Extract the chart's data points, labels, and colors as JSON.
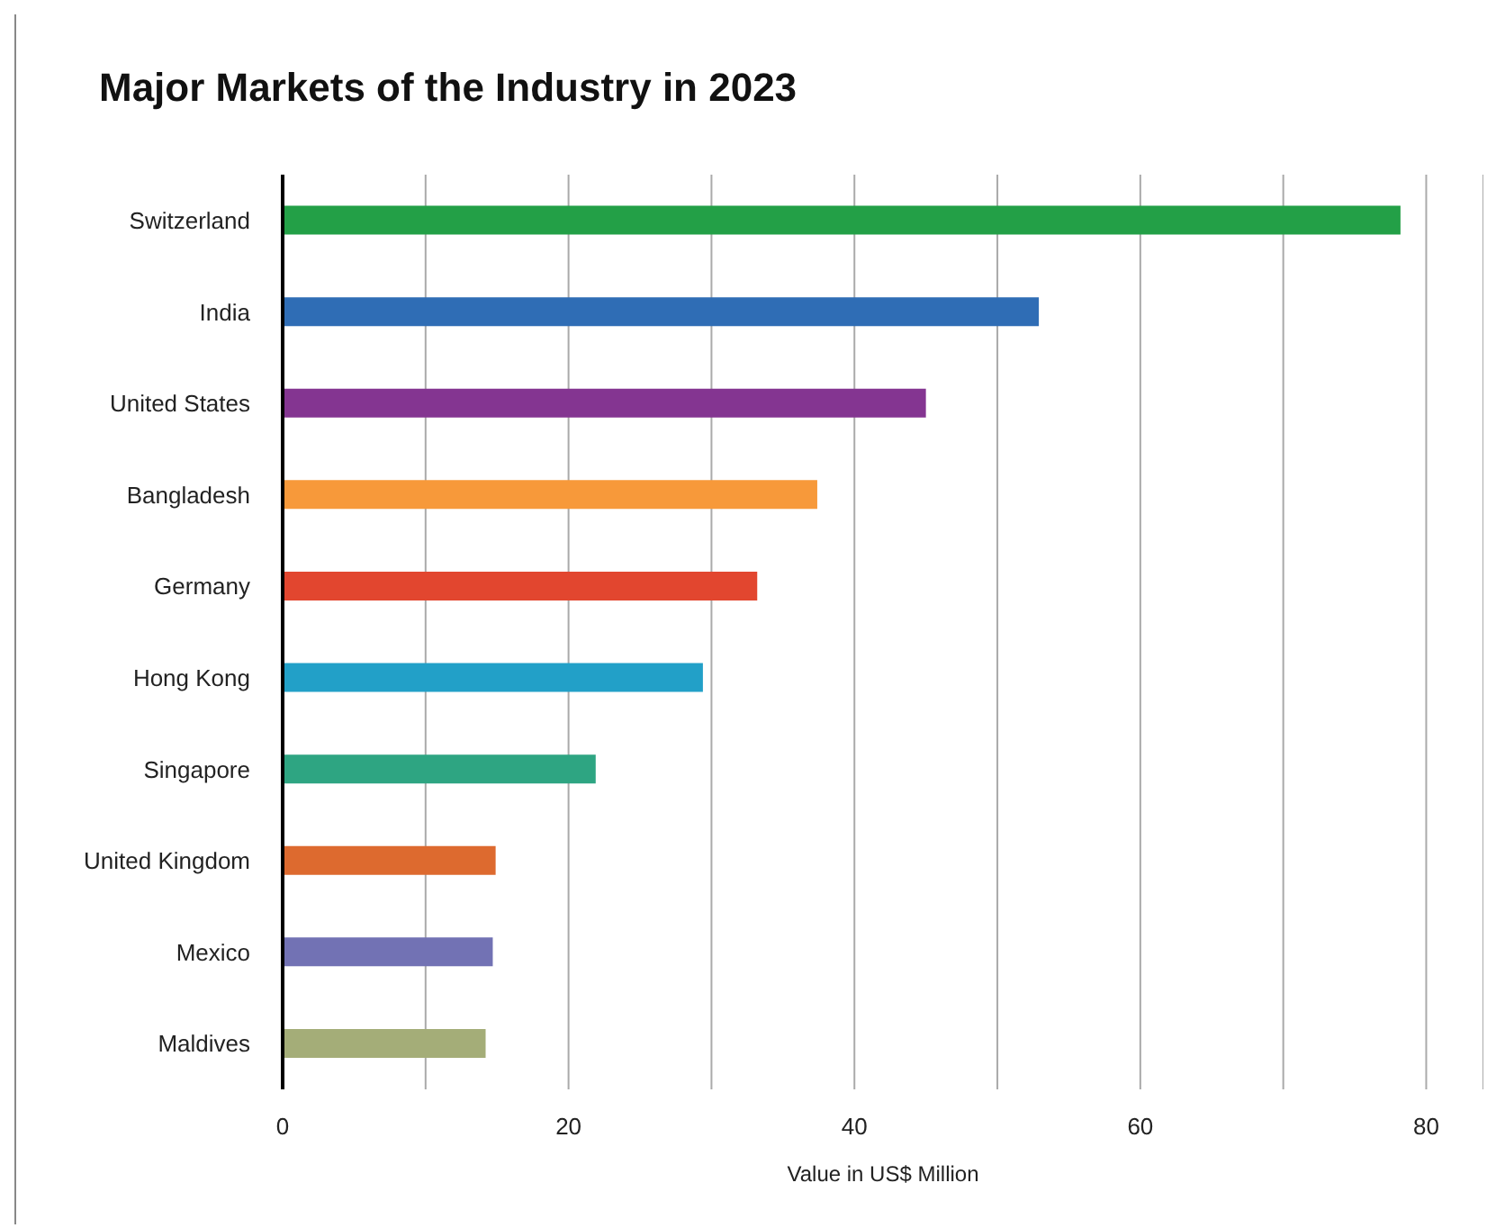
{
  "chart_data": {
    "type": "bar",
    "orientation": "horizontal",
    "title": "Major Markets of the Industry in 2023",
    "xlabel": "Value in US$ Million",
    "categories": [
      "Switzerland",
      "India",
      "United States",
      "Bangladesh",
      "Germany",
      "Hong Kong",
      "Singapore",
      "United Kingdom",
      "Mexico",
      "Maldives"
    ],
    "values": [
      78.2,
      52.9,
      45.0,
      37.4,
      33.2,
      29.4,
      21.9,
      14.9,
      14.7,
      14.2
    ],
    "colors": [
      "#23a047",
      "#2f6db5",
      "#843591",
      "#f7993a",
      "#e2462f",
      "#22a0c8",
      "#2ea582",
      "#dd6a2f",
      "#7272b4",
      "#a4ad78"
    ],
    "xlim": [
      0,
      84
    ],
    "xticks": [
      0,
      {
        "value": 10,
        "label": null
      },
      20,
      {
        "value": 30,
        "label": null
      },
      40,
      {
        "value": 50,
        "label": null
      },
      60,
      {
        "value": 70,
        "label": null
      },
      80
    ],
    "grid": "x",
    "legend": false
  }
}
